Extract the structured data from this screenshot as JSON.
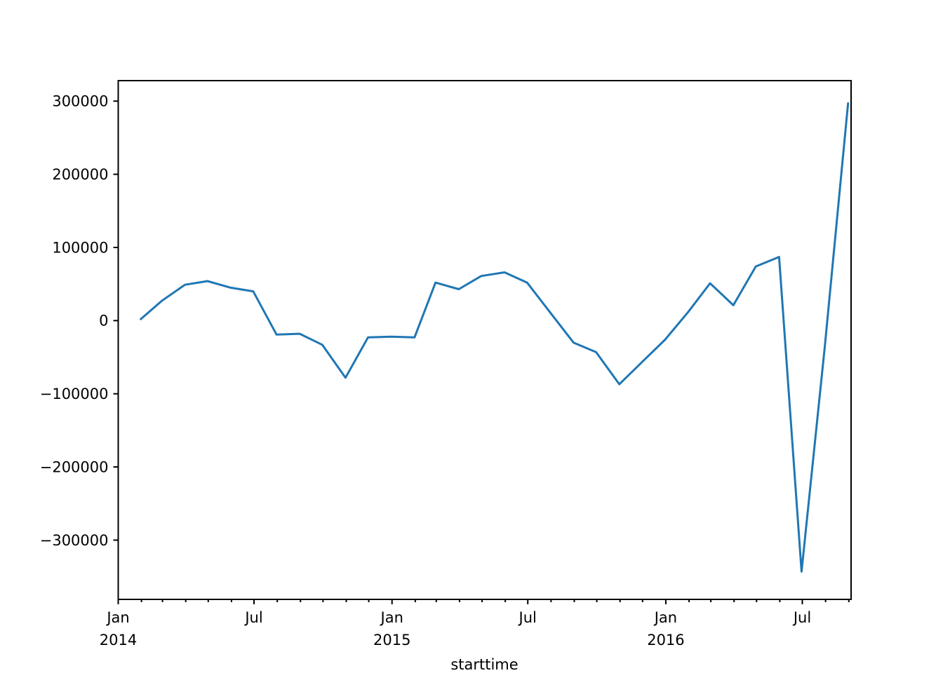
{
  "chart_data": {
    "type": "line",
    "title": "",
    "xlabel": "starttime",
    "ylabel": "",
    "grid": false,
    "legend": null,
    "line_color": "#1f77b4",
    "xlim": [
      "2014-01-01",
      "2016-09-04"
    ],
    "ylim": [
      -381000,
      328000
    ],
    "y_ticks": [
      {
        "value": 300000,
        "label": "300000"
      },
      {
        "value": 200000,
        "label": "200000"
      },
      {
        "value": 100000,
        "label": "100000"
      },
      {
        "value": 0,
        "label": "0"
      },
      {
        "value": -100000,
        "label": "−100000"
      },
      {
        "value": -200000,
        "label": "−200000"
      },
      {
        "value": -300000,
        "label": "−300000"
      }
    ],
    "x_ticks_major": [
      {
        "date": "2014-01-01",
        "line1": "Jan",
        "line2": "2014"
      },
      {
        "date": "2014-07-01",
        "line1": "Jul",
        "line2": ""
      },
      {
        "date": "2015-01-01",
        "line1": "Jan",
        "line2": "2015"
      },
      {
        "date": "2015-07-01",
        "line1": "Jul",
        "line2": ""
      },
      {
        "date": "2016-01-01",
        "line1": "Jan",
        "line2": "2016"
      },
      {
        "date": "2016-07-01",
        "line1": "Jul",
        "line2": ""
      }
    ],
    "x_minor_tick_unit": "month",
    "series": [
      {
        "name": "starttime",
        "color": "#1f77b4",
        "x": [
          "2014-01-31",
          "2014-02-28",
          "2014-03-31",
          "2014-04-30",
          "2014-05-31",
          "2014-06-30",
          "2014-07-31",
          "2014-08-31",
          "2014-09-30",
          "2014-10-31",
          "2014-11-30",
          "2014-12-31",
          "2015-01-31",
          "2015-02-28",
          "2015-03-31",
          "2015-04-30",
          "2015-05-31",
          "2015-06-30",
          "2015-07-31",
          "2015-08-31",
          "2015-09-30",
          "2015-10-31",
          "2015-11-30",
          "2015-12-31",
          "2016-01-31",
          "2016-02-29",
          "2016-03-31",
          "2016-04-30",
          "2016-05-31",
          "2016-06-30",
          "2016-07-31",
          "2016-08-31"
        ],
        "values": [
          2000,
          27000,
          49000,
          54000,
          45000,
          40000,
          -19000,
          -18000,
          -33000,
          -78000,
          -23000,
          -22000,
          -23000,
          52000,
          43000,
          61000,
          66000,
          52000,
          11000,
          -30000,
          -43000,
          -87000,
          -57000,
          -26000,
          12000,
          51000,
          21000,
          74000,
          87000,
          -343000,
          -35000,
          297000
        ]
      }
    ]
  }
}
